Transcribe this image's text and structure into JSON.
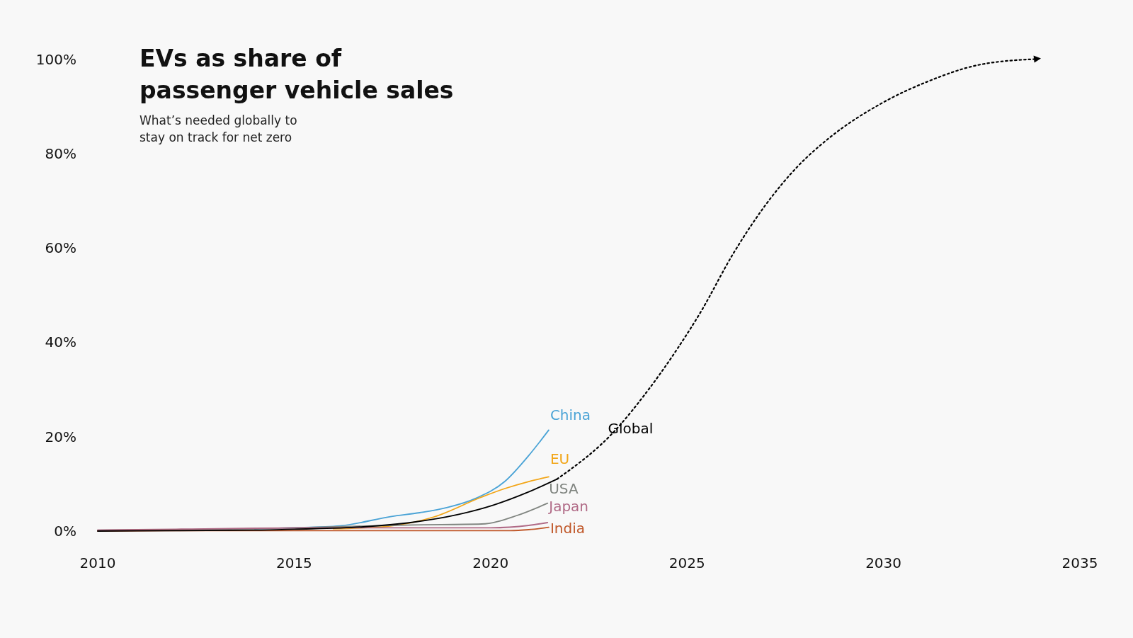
{
  "chart_data": {
    "type": "line",
    "title": "EVs as share of passenger vehicle sales",
    "subtitle": "What’s needed globally to stay on track for net zero",
    "xlim": [
      2010,
      2035
    ],
    "xticks": [
      2010,
      2015,
      2020,
      2025,
      2030,
      2035
    ],
    "ylim": [
      0,
      100
    ],
    "yticks": [
      {
        "value": 0,
        "label": "0%"
      },
      {
        "value": 20,
        "label": "20%"
      },
      {
        "value": 40,
        "label": "40%"
      },
      {
        "value": 60,
        "label": "60%"
      },
      {
        "value": 80,
        "label": "80%"
      },
      {
        "value": 100,
        "label": "100%"
      }
    ],
    "line_style": "solid",
    "series": [
      {
        "name": "China",
        "color": "#4aa3d6",
        "x": [
          2014,
          2015,
          2016.16,
          2017.48,
          2018.2,
          2018.9,
          2019.64,
          2020.36,
          2020.97,
          2021.48
        ],
        "values": [
          0.5,
          0.7,
          1.1,
          3.1,
          3.9,
          5.0,
          7.0,
          10.5,
          16.0,
          21.4
        ]
      },
      {
        "name": "EU",
        "color": "#f2a516",
        "x": [
          2016,
          2017.37,
          2018.56,
          2019.77,
          2020.36,
          2020.97,
          2021.48
        ],
        "values": [
          0.5,
          1.0,
          3.0,
          7.2,
          9.0,
          10.5,
          11.5
        ]
      },
      {
        "name": "USA",
        "color": "#808580",
        "x": [
          2010,
          2012,
          2014,
          2016,
          2018,
          2019.77,
          2020.67,
          2021.45
        ],
        "values": [
          0.2,
          0.3,
          0.5,
          0.9,
          1.3,
          1.5,
          3.3,
          5.9
        ]
      },
      {
        "name": "Japan",
        "color": "#b06a86",
        "x": [
          2010,
          2012,
          2014,
          2016,
          2018,
          2020,
          2020.97,
          2021.45
        ],
        "values": [
          0.2,
          0.4,
          0.6,
          0.7,
          0.7,
          0.7,
          1.2,
          1.8
        ]
      },
      {
        "name": "India",
        "color": "#c0582a",
        "x": [
          2010,
          2012,
          2014,
          2016,
          2018,
          2020,
          2020.5,
          2020.97,
          2021.48
        ],
        "values": [
          0.0,
          0.1,
          0.1,
          0.1,
          0.1,
          0.1,
          0.1,
          0.3,
          0.8
        ]
      },
      {
        "name": "Global",
        "color": "#000000",
        "x": [
          2010,
          2012,
          2014,
          2015,
          2016.76,
          2017.96,
          2019.17,
          2020.07,
          2020.97,
          2021.69
        ],
        "values": [
          0.0,
          0.1,
          0.2,
          0.4,
          0.9,
          1.8,
          3.5,
          5.5,
          8.3,
          11.0
        ]
      },
      {
        "color": "#000000",
        "line_style": "dotted",
        "x": [
          2021.69,
          2023.19,
          2023.94,
          2024.76,
          2025.34,
          2026.17,
          2026.99,
          2027.82,
          2028.65,
          2029.9,
          2031.14,
          2032.38,
          2033.83
        ],
        "values": [
          11.0,
          21.5,
          29.1,
          38.7,
          46.3,
          58.7,
          69.0,
          77.3,
          83.5,
          90.4,
          95.3,
          98.7,
          100
        ]
      }
    ]
  }
}
